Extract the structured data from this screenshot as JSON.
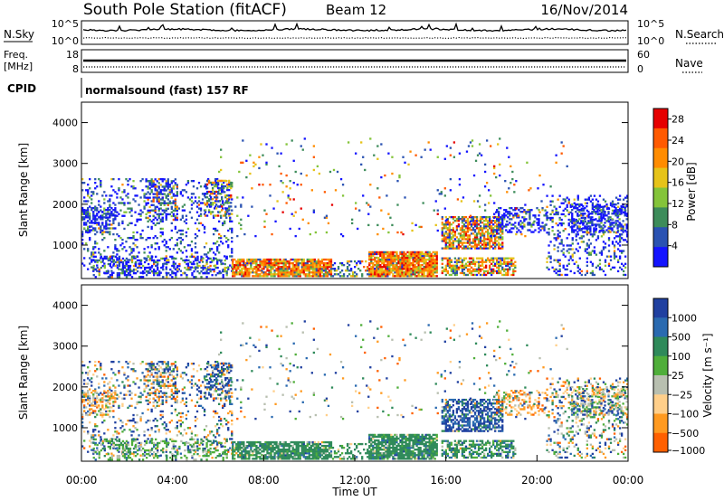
{
  "header": {
    "station_title": "South Pole Station (fitACF)",
    "beam_label": "Beam 12",
    "date_label": "16/Nov/2014"
  },
  "params": {
    "nsky_label": "N.Sky",
    "nsky_ticks": [
      "10^5",
      "10^0"
    ],
    "nsearch_label": "N.Search",
    "nsearch_ticks": [
      "10^5",
      "10^0"
    ],
    "freq_label_1": "Freq.",
    "freq_label_2": "[MHz]",
    "freq_ticks": [
      "18",
      "8"
    ],
    "nave_label": "Nave",
    "nave_ticks": [
      "60",
      "0"
    ],
    "cpid_label": "CPID",
    "cpid_value": "normalsound (fast) 157 RF"
  },
  "chart_data": [
    {
      "type": "heatmap",
      "name": "power",
      "ylabel": "Slant Range [km]",
      "xlabel": "",
      "xlim": [
        0,
        24
      ],
      "ylim": [
        180,
        4500
      ],
      "yticks": [
        "1000",
        "2000",
        "3000",
        "4000"
      ],
      "colorbar_label": "Power [dB]",
      "colorbar_ticks": [
        "4",
        "8",
        "12",
        "16",
        "20",
        "24",
        "28"
      ],
      "colorbar_range": [
        0,
        30
      ],
      "colors": [
        "#1414ff",
        "#2a52b2",
        "#3d8c5a",
        "#84c43a",
        "#e6c319",
        "#ff8c00",
        "#ff5a00",
        "#e60000"
      ]
    },
    {
      "type": "heatmap",
      "name": "velocity",
      "ylabel": "Slant Range [km]",
      "xlabel": "Time UT",
      "xlim": [
        0,
        24
      ],
      "ylim": [
        180,
        4500
      ],
      "yticks": [
        "1000",
        "2000",
        "3000",
        "4000"
      ],
      "xticks": [
        "00:00",
        "04:00",
        "08:00",
        "12:00",
        "16:00",
        "20:00",
        "00:00"
      ],
      "colorbar_label": "Velocity [m s⁻¹]",
      "colorbar_ticks": [
        "1000",
        "500",
        "100",
        "25",
        "−25",
        "−100",
        "−500",
        "−1000"
      ],
      "colors": [
        "#2040a0",
        "#2a6ab0",
        "#2f8a5a",
        "#4fae3a",
        "#b8bfb0",
        "#ffcf8a",
        "#ff9a20",
        "#ff6000",
        "#e60000"
      ]
    }
  ]
}
